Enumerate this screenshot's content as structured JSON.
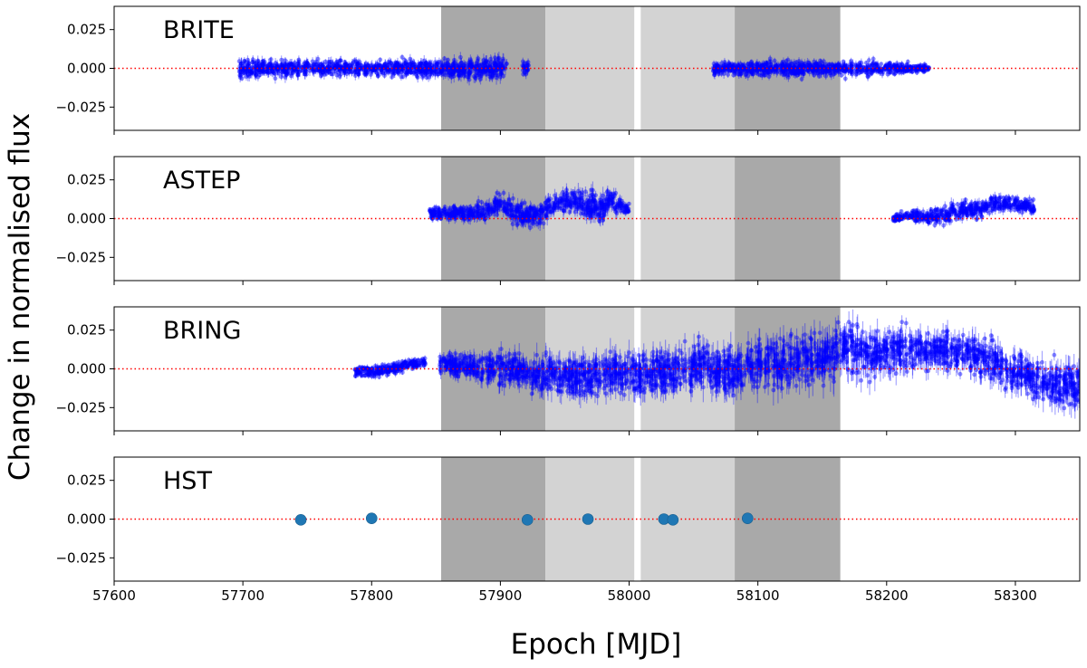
{
  "chart_data": {
    "type": "scatter",
    "title": "",
    "xlabel": "Epoch [MJD]",
    "ylabel": "Change in normalised flux",
    "xlim": [
      57600,
      58350
    ],
    "ylim": [
      -0.04,
      0.04
    ],
    "x_ticks": [
      57600,
      57700,
      57800,
      57900,
      58000,
      58100,
      58200,
      58300
    ],
    "y_ticks": [
      -0.025,
      0.0,
      0.025
    ],
    "x_tick_labels": [
      "57600",
      "57700",
      "57800",
      "57900",
      "58000",
      "58100",
      "58200",
      "58300"
    ],
    "y_tick_labels": [
      "−0.025",
      "0.000",
      "0.025"
    ],
    "zero_line": {
      "y": 0.0,
      "style": "dotted",
      "color": "#ff0000"
    },
    "shaded_regions": [
      {
        "x0": 57854,
        "x1": 57935,
        "shade": "dark"
      },
      {
        "x0": 57935,
        "x1": 58004,
        "shade": "light"
      },
      {
        "x0": 58009,
        "x1": 58082,
        "shade": "light"
      },
      {
        "x0": 58082,
        "x1": 58164,
        "shade": "dark"
      }
    ],
    "colors": {
      "dark_shade": "#a9a9a9",
      "light_shade": "#d3d3d3",
      "points": "#0000ff",
      "hst_points": "#1f77b4",
      "zero_line": "#ff0000"
    },
    "panels": [
      {
        "label": "BRITE",
        "segments": [
          {
            "x_range": [
              57697,
              57905
            ],
            "center": [
              [
                57697,
                0.0
              ],
              [
                57905,
                0.0
              ]
            ],
            "scatter": [
              [
                57697,
                0.005
              ],
              [
                57800,
                0.004
              ],
              [
                57905,
                0.006
              ]
            ]
          },
          {
            "x_range": [
              57917,
              57922
            ],
            "center": [
              [
                57917,
                0.0
              ],
              [
                57922,
                0.001
              ]
            ],
            "scatter": [
              [
                57917,
                0.004
              ],
              [
                57922,
                0.004
              ]
            ]
          },
          {
            "x_range": [
              58065,
              58233
            ],
            "center": [
              [
                58065,
                0.0
              ],
              [
                58233,
                0.0
              ]
            ],
            "scatter": [
              [
                58065,
                0.004
              ],
              [
                58180,
                0.004
              ],
              [
                58233,
                0.002
              ]
            ]
          }
        ]
      },
      {
        "label": "ASTEP",
        "segments": [
          {
            "x_range": [
              57845,
              58000
            ],
            "center": [
              [
                57845,
                0.004
              ],
              [
                57860,
                0.003
              ],
              [
                57890,
                0.004
              ],
              [
                57900,
                0.012
              ],
              [
                57910,
                0.004
              ],
              [
                57930,
                0.002
              ],
              [
                57940,
                0.008
              ],
              [
                57950,
                0.012
              ],
              [
                57960,
                0.011
              ],
              [
                57970,
                0.008
              ],
              [
                57978,
                0.004
              ],
              [
                57985,
                0.012
              ],
              [
                57995,
                0.008
              ],
              [
                58000,
                0.006
              ]
            ],
            "scatter": [
              [
                57845,
                0.003
              ],
              [
                57900,
                0.006
              ],
              [
                57950,
                0.006
              ],
              [
                57978,
                0.008
              ],
              [
                58000,
                0.003
              ]
            ]
          },
          {
            "x_range": [
              58205,
              58315
            ],
            "center": [
              [
                58205,
                0.0
              ],
              [
                58220,
                0.002
              ],
              [
                58235,
                0.001
              ],
              [
                58250,
                0.004
              ],
              [
                58270,
                0.006
              ],
              [
                58290,
                0.01
              ],
              [
                58305,
                0.009
              ],
              [
                58315,
                0.007
              ]
            ],
            "scatter": [
              [
                58205,
                0.002
              ],
              [
                58250,
                0.005
              ],
              [
                58315,
                0.004
              ]
            ]
          }
        ]
      },
      {
        "label": "BRING",
        "segments": [
          {
            "x_range": [
              57787,
              57842
            ],
            "center": [
              [
                57787,
                -0.002
              ],
              [
                57800,
                -0.002
              ],
              [
                57815,
                0.0
              ],
              [
                57830,
                0.003
              ],
              [
                57842,
                0.004
              ]
            ],
            "scatter": [
              [
                57787,
                0.003
              ],
              [
                57842,
                0.003
              ]
            ]
          },
          {
            "x_range": [
              57853,
              58350
            ],
            "center": [
              [
                57853,
                0.003
              ],
              [
                57880,
                0.001
              ],
              [
                57910,
                0.0
              ],
              [
                57925,
                -0.004
              ],
              [
                57950,
                -0.005
              ],
              [
                57970,
                -0.004
              ],
              [
                58000,
                -0.003
              ],
              [
                58020,
                -0.002
              ],
              [
                58040,
                -0.001
              ],
              [
                58060,
                0.003
              ],
              [
                58080,
                -0.002
              ],
              [
                58100,
                0.002
              ],
              [
                58130,
                0.004
              ],
              [
                58150,
                0.008
              ],
              [
                58165,
                0.015
              ],
              [
                58190,
                0.01
              ],
              [
                58210,
                0.012
              ],
              [
                58240,
                0.013
              ],
              [
                58260,
                0.01
              ],
              [
                58280,
                0.006
              ],
              [
                58300,
                -0.002
              ],
              [
                58320,
                -0.008
              ],
              [
                58350,
                -0.012
              ]
            ],
            "scatter": [
              [
                57853,
                0.005
              ],
              [
                57940,
                0.011
              ],
              [
                58050,
                0.012
              ],
              [
                58150,
                0.014
              ],
              [
                58250,
                0.01
              ],
              [
                58350,
                0.012
              ]
            ]
          }
        ]
      },
      {
        "label": "HST",
        "points": [
          [
            57745,
            -0.0005
          ],
          [
            57800,
            0.0005
          ],
          [
            57921,
            -0.0005
          ],
          [
            57968,
            0.0
          ],
          [
            58027,
            0.0
          ],
          [
            58034,
            -0.0005
          ],
          [
            58092,
            0.0005
          ]
        ]
      }
    ]
  }
}
